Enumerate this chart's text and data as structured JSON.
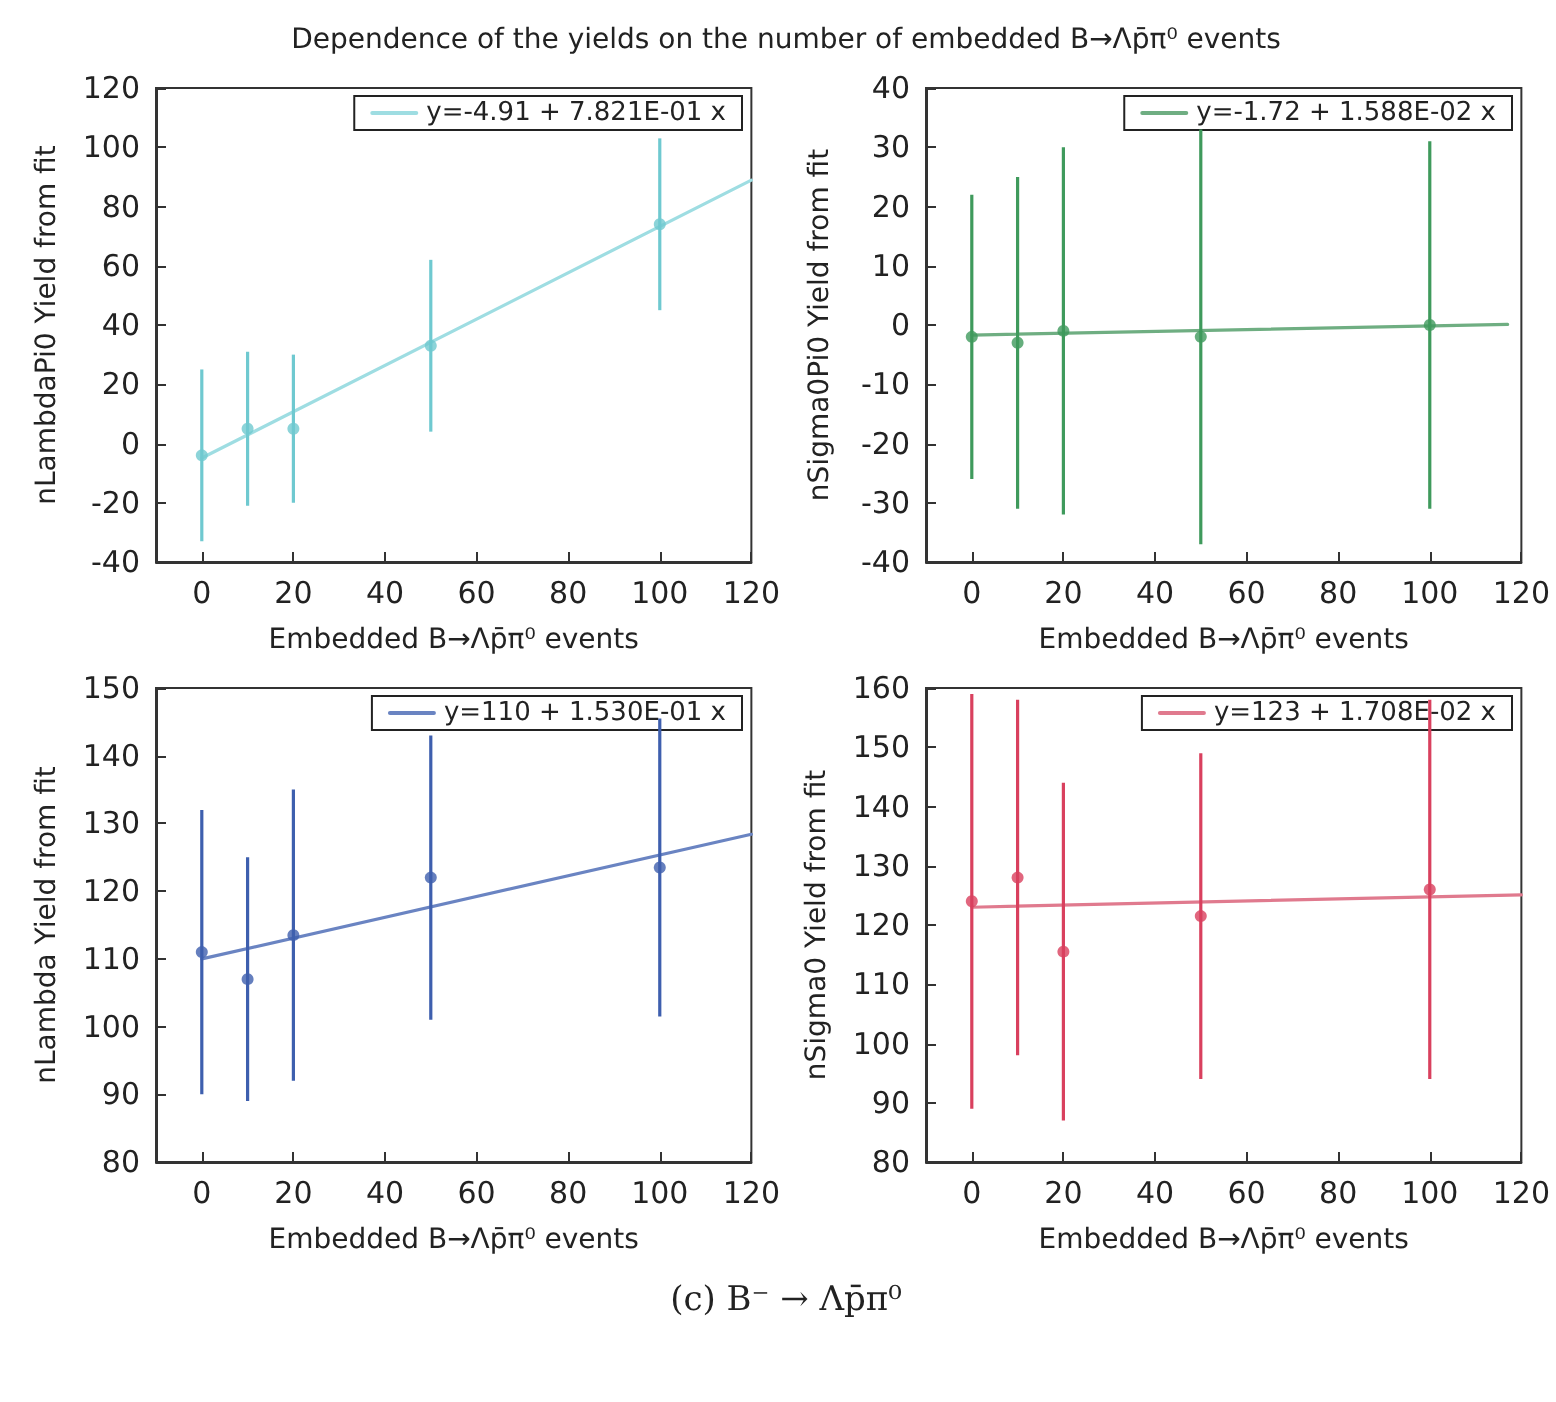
{
  "chart_data": [
    {
      "type": "scatter",
      "title": "Dependence of the yields on the number of embedded B→Λp̄π⁰ events",
      "xlabel": "Embedded B→Λp̄π⁰ events",
      "ylabel": "nLambdaPi0 Yield from fit",
      "xlim": [
        -10,
        120
      ],
      "xticks": [
        0,
        20,
        40,
        60,
        80,
        100,
        120
      ],
      "ylim": [
        -40,
        120
      ],
      "yticks": [
        -40,
        -20,
        0,
        20,
        40,
        60,
        80,
        100,
        120
      ],
      "grid": false,
      "legend": "top right",
      "marker": "circle",
      "series": [
        {
          "type": "scatter",
          "color": "#6fc9d0",
          "x": [
            0,
            10,
            20,
            50,
            100
          ],
          "values": [
            -4,
            5,
            5,
            33,
            74
          ],
          "errors": [
            29,
            26,
            25,
            29,
            29
          ]
        },
        {
          "type": "line",
          "name": "y=-4.91 + 7.821E-01 x",
          "color": "#9edde2",
          "x": [
            0,
            120
          ],
          "values": [
            -4.9,
            88.9
          ],
          "marker": "none",
          "line_style": "solid"
        }
      ]
    },
    {
      "type": "scatter",
      "xlabel": "Embedded B→Λp̄π⁰ events",
      "ylabel": "nSigma0Pi0 Yield from fit",
      "xlim": [
        -10,
        120
      ],
      "xticks": [
        0,
        20,
        40,
        60,
        80,
        100,
        120
      ],
      "ylim": [
        -40,
        40
      ],
      "yticks": [
        -40,
        -30,
        -20,
        -10,
        0,
        10,
        20,
        30,
        40
      ],
      "grid": false,
      "legend": "top right",
      "marker": "circle",
      "series": [
        {
          "type": "scatter",
          "color": "#3f9a5c",
          "x": [
            0,
            10,
            20,
            50,
            100
          ],
          "values": [
            -2,
            -3,
            -1,
            -2,
            0
          ],
          "errors": [
            24,
            28,
            31,
            35,
            31
          ]
        },
        {
          "type": "line",
          "name": "y=-1.72 + 1.588E-02 x",
          "color": "#6fae82",
          "x": [
            0,
            117
          ],
          "values": [
            -1.7,
            0.1
          ],
          "marker": "none",
          "line_style": "solid"
        }
      ]
    },
    {
      "type": "scatter",
      "xlabel": "Embedded B→Λp̄π⁰ events",
      "ylabel": "nLambda Yield from fit",
      "xlim": [
        -10,
        120
      ],
      "xticks": [
        0,
        20,
        40,
        60,
        80,
        100,
        120
      ],
      "ylim": [
        80,
        150
      ],
      "yticks": [
        80,
        90,
        100,
        110,
        120,
        130,
        140,
        150
      ],
      "grid": false,
      "legend": "top right",
      "marker": "circle",
      "series": [
        {
          "type": "scatter",
          "color": "#3e5fae",
          "x": [
            0,
            10,
            20,
            50,
            100
          ],
          "values": [
            111,
            107,
            113.5,
            122,
            123.5
          ],
          "errors": [
            21,
            18,
            21.5,
            21,
            22
          ]
        },
        {
          "type": "line",
          "name": "y=110 + 1.530E-01 x",
          "color": "#6a84c2",
          "x": [
            0,
            120
          ],
          "values": [
            110,
            128.4
          ],
          "marker": "none",
          "line_style": "solid"
        }
      ]
    },
    {
      "type": "scatter",
      "xlabel": "Embedded B→Λp̄π⁰ events",
      "ylabel": "nSigma0 Yield from fit",
      "xlim": [
        -10,
        120
      ],
      "xticks": [
        0,
        20,
        40,
        60,
        80,
        100,
        120
      ],
      "ylim": [
        80,
        160
      ],
      "yticks": [
        80,
        90,
        100,
        110,
        120,
        130,
        140,
        150,
        160
      ],
      "grid": false,
      "legend": "top right",
      "marker": "circle",
      "annotations": [
        "(c) B⁻ → Λp̄π⁰"
      ],
      "series": [
        {
          "type": "scatter",
          "color": "#d9405e",
          "x": [
            0,
            10,
            20,
            50,
            100
          ],
          "values": [
            124,
            128,
            115.5,
            121.5,
            126
          ],
          "errors": [
            35,
            30,
            28.5,
            27.5,
            32
          ]
        },
        {
          "type": "line",
          "name": "y=123 + 1.708E-02 x",
          "color": "#e07a8e",
          "x": [
            0,
            120
          ],
          "values": [
            123,
            125.1
          ],
          "marker": "none",
          "line_style": "solid"
        }
      ]
    }
  ]
}
